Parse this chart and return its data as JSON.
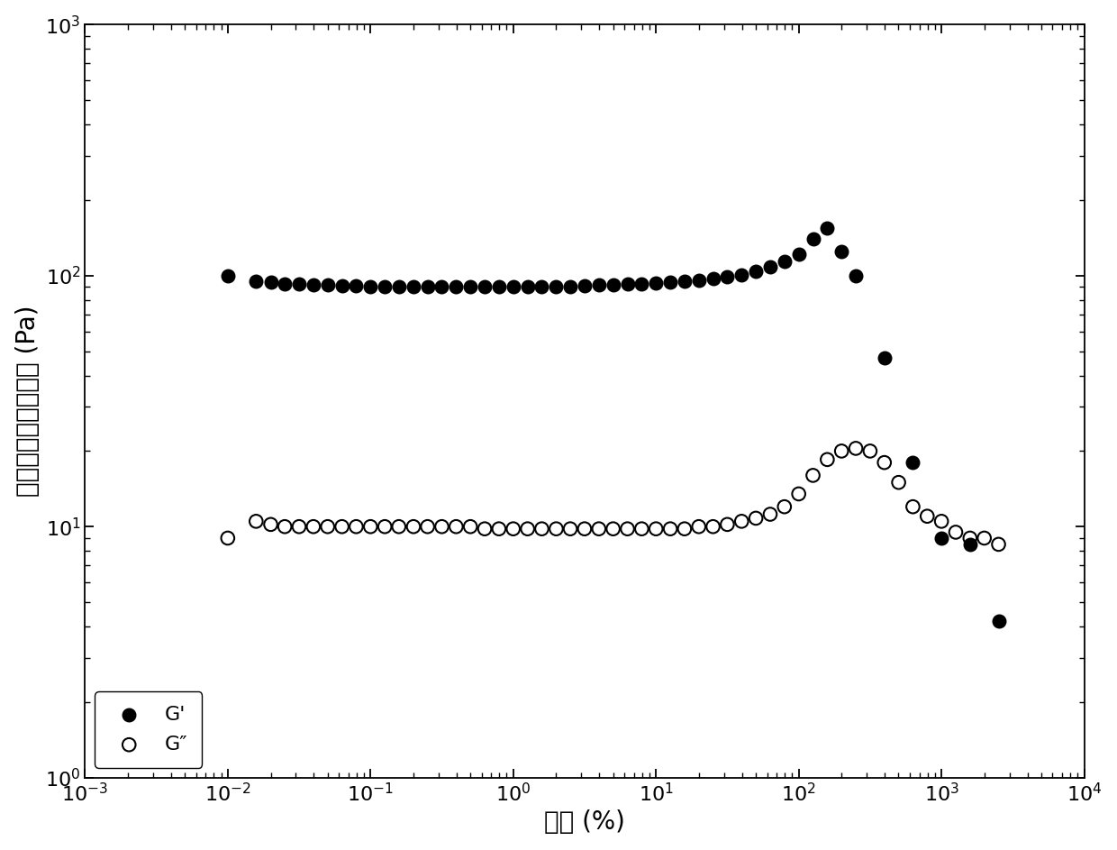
{
  "G_prime_x": [
    0.01,
    0.0158,
    0.02,
    0.0251,
    0.0316,
    0.0398,
    0.0501,
    0.0631,
    0.0794,
    0.1,
    0.126,
    0.158,
    0.2,
    0.251,
    0.316,
    0.398,
    0.501,
    0.631,
    0.794,
    1.0,
    1.26,
    1.585,
    2.0,
    2.51,
    3.16,
    3.98,
    5.01,
    6.31,
    7.94,
    10.0,
    12.6,
    15.85,
    19.95,
    25.1,
    31.6,
    39.8,
    50.1,
    63.1,
    79.4,
    100.0,
    125.9,
    158.5,
    199.5,
    251.2,
    398.1,
    630.9,
    1000.0,
    1584.9,
    2511.9
  ],
  "G_prime_y": [
    100.0,
    95.0,
    94.0,
    93.0,
    92.5,
    92.0,
    91.5,
    91.0,
    91.0,
    90.5,
    90.5,
    90.5,
    90.5,
    90.5,
    90.5,
    90.5,
    90.5,
    90.0,
    90.0,
    90.0,
    90.0,
    90.0,
    90.5,
    90.5,
    91.0,
    91.5,
    92.0,
    92.5,
    93.0,
    93.5,
    94.0,
    95.0,
    96.0,
    97.0,
    99.0,
    101.0,
    104.0,
    108.0,
    114.0,
    122.0,
    140.0,
    155.0,
    125.0,
    100.0,
    47.0,
    18.0,
    9.0,
    8.5,
    4.2
  ],
  "G_dprime_x": [
    0.01,
    0.0158,
    0.02,
    0.0251,
    0.0316,
    0.0398,
    0.0501,
    0.0631,
    0.0794,
    0.1,
    0.126,
    0.158,
    0.2,
    0.251,
    0.316,
    0.398,
    0.501,
    0.631,
    0.794,
    1.0,
    1.26,
    1.585,
    2.0,
    2.51,
    3.16,
    3.98,
    5.01,
    6.31,
    7.94,
    10.0,
    12.6,
    15.85,
    19.95,
    25.1,
    31.6,
    39.8,
    50.1,
    63.1,
    79.4,
    100.0,
    125.9,
    158.5,
    199.5,
    251.2,
    316.2,
    398.1,
    501.2,
    630.9,
    794.3,
    1000.0,
    1258.9,
    1584.9,
    1995.3,
    2511.9
  ],
  "G_dprime_y": [
    9.0,
    10.5,
    10.2,
    10.0,
    10.0,
    10.0,
    10.0,
    10.0,
    10.0,
    10.0,
    10.0,
    10.0,
    10.0,
    10.0,
    10.0,
    10.0,
    10.0,
    9.8,
    9.8,
    9.8,
    9.8,
    9.8,
    9.8,
    9.8,
    9.8,
    9.8,
    9.8,
    9.8,
    9.8,
    9.8,
    9.8,
    9.8,
    10.0,
    10.0,
    10.2,
    10.5,
    10.8,
    11.2,
    12.0,
    13.5,
    16.0,
    18.5,
    20.0,
    20.5,
    20.0,
    18.0,
    15.0,
    12.0,
    11.0,
    10.5,
    9.5,
    9.0,
    9.0,
    8.5
  ],
  "xlabel": "应变 (%)",
  "ylabel": "储存模量，损耗模量 (Pa)",
  "xlim": [
    0.001,
    10000.0
  ],
  "ylim": [
    1.0,
    1000.0
  ],
  "legend_G_prime": "G'",
  "legend_G_dprime": "G″",
  "background_color": "#ffffff",
  "marker_size": 110,
  "marker_linewidth": 1.5,
  "marker_color": "#000000",
  "font_size_label": 20,
  "font_size_tick": 16,
  "font_size_legend": 16
}
